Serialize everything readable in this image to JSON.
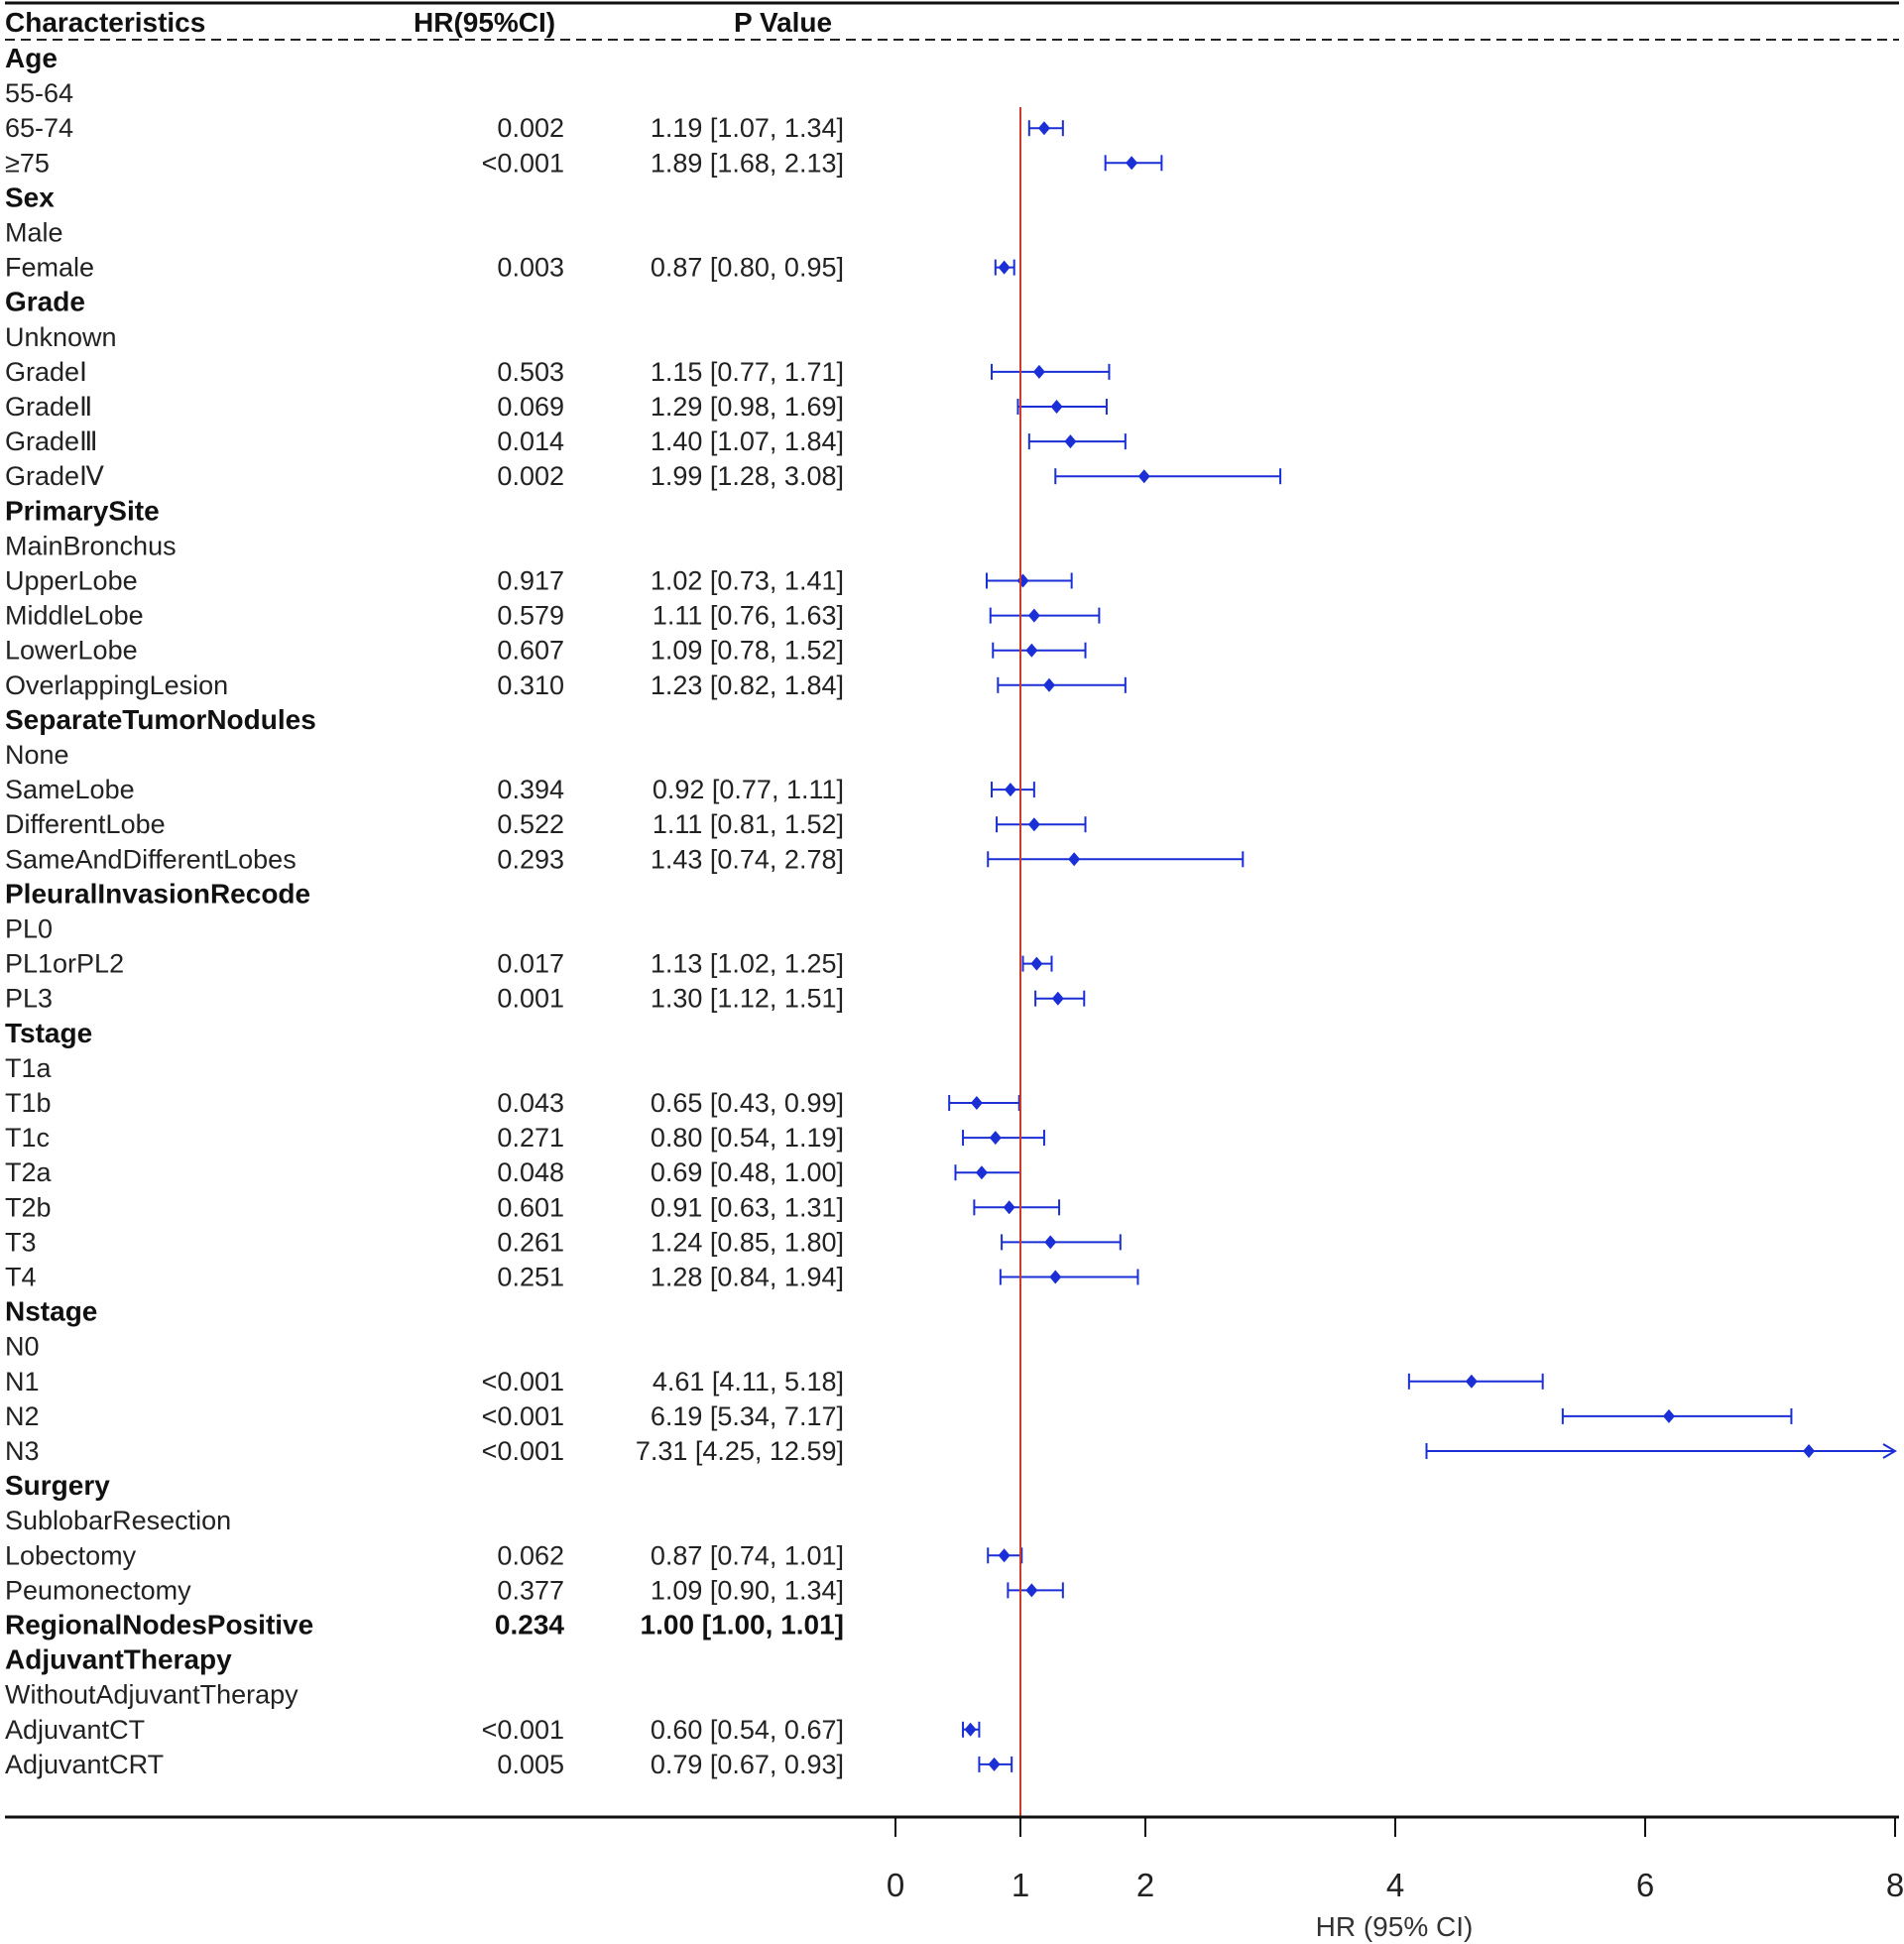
{
  "chart_data": {
    "type": "forest",
    "columns": [
      "Characteristics",
      "HR(95%CI)",
      "P Value"
    ],
    "x_axis": {
      "label": "HR (95% CI)",
      "ticks": [
        0,
        1,
        2,
        4,
        6,
        8
      ],
      "range": [
        0,
        8
      ],
      "reference_line": 1
    },
    "colors": {
      "point": "#1a2fd6",
      "reference": "#d03a2a",
      "text": "#222222"
    },
    "rows": [
      {
        "label": "Age",
        "kind": "group"
      },
      {
        "label": "55-64",
        "kind": "ref"
      },
      {
        "label": "65-74",
        "kind": "item",
        "p": "0.002",
        "ci_text": "1.19 [1.07, 1.34]",
        "hr": 1.19,
        "lo": 1.07,
        "hi": 1.34
      },
      {
        "label": "≥75",
        "kind": "item",
        "p": "<0.001",
        "ci_text": "1.89 [1.68, 2.13]",
        "hr": 1.89,
        "lo": 1.68,
        "hi": 2.13
      },
      {
        "label": "Sex",
        "kind": "group"
      },
      {
        "label": "Male",
        "kind": "ref"
      },
      {
        "label": "Female",
        "kind": "item",
        "p": "0.003",
        "ci_text": "0.87 [0.80, 0.95]",
        "hr": 0.87,
        "lo": 0.8,
        "hi": 0.95
      },
      {
        "label": "Grade",
        "kind": "group"
      },
      {
        "label": "Unknown",
        "kind": "ref"
      },
      {
        "label": "GradeⅠ",
        "kind": "item",
        "p": "0.503",
        "ci_text": "1.15 [0.77, 1.71]",
        "hr": 1.15,
        "lo": 0.77,
        "hi": 1.71
      },
      {
        "label": "GradeⅡ",
        "kind": "item",
        "p": "0.069",
        "ci_text": "1.29 [0.98, 1.69]",
        "hr": 1.29,
        "lo": 0.98,
        "hi": 1.69
      },
      {
        "label": "GradeⅢ",
        "kind": "item",
        "p": "0.014",
        "ci_text": "1.40 [1.07, 1.84]",
        "hr": 1.4,
        "lo": 1.07,
        "hi": 1.84
      },
      {
        "label": "GradeⅣ",
        "kind": "item",
        "p": "0.002",
        "ci_text": "1.99 [1.28, 3.08]",
        "hr": 1.99,
        "lo": 1.28,
        "hi": 3.08
      },
      {
        "label": "PrimarySite",
        "kind": "group"
      },
      {
        "label": "MainBronchus",
        "kind": "ref"
      },
      {
        "label": "UpperLobe",
        "kind": "item",
        "p": "0.917",
        "ci_text": "1.02 [0.73, 1.41]",
        "hr": 1.02,
        "lo": 0.73,
        "hi": 1.41
      },
      {
        "label": "MiddleLobe",
        "kind": "item",
        "p": "0.579",
        "ci_text": "1.11 [0.76, 1.63]",
        "hr": 1.11,
        "lo": 0.76,
        "hi": 1.63
      },
      {
        "label": "LowerLobe",
        "kind": "item",
        "p": "0.607",
        "ci_text": "1.09 [0.78, 1.52]",
        "hr": 1.09,
        "lo": 0.78,
        "hi": 1.52
      },
      {
        "label": "OverlappingLesion",
        "kind": "item",
        "p": "0.310",
        "ci_text": "1.23 [0.82, 1.84]",
        "hr": 1.23,
        "lo": 0.82,
        "hi": 1.84
      },
      {
        "label": "SeparateTumorNodules",
        "kind": "group"
      },
      {
        "label": "None",
        "kind": "ref"
      },
      {
        "label": "SameLobe",
        "kind": "item",
        "p": "0.394",
        "ci_text": "0.92 [0.77, 1.11]",
        "hr": 0.92,
        "lo": 0.77,
        "hi": 1.11
      },
      {
        "label": "DifferentLobe",
        "kind": "item",
        "p": "0.522",
        "ci_text": "1.11 [0.81, 1.52]",
        "hr": 1.11,
        "lo": 0.81,
        "hi": 1.52
      },
      {
        "label": "SameAndDifferentLobes",
        "kind": "item",
        "p": "0.293",
        "ci_text": "1.43 [0.74, 2.78]",
        "hr": 1.43,
        "lo": 0.74,
        "hi": 2.78
      },
      {
        "label": "PleuralInvasionRecode",
        "kind": "group"
      },
      {
        "label": "PL0",
        "kind": "ref"
      },
      {
        "label": "PL1orPL2",
        "kind": "item",
        "p": "0.017",
        "ci_text": "1.13 [1.02, 1.25]",
        "hr": 1.13,
        "lo": 1.02,
        "hi": 1.25
      },
      {
        "label": "PL3",
        "kind": "item",
        "p": "0.001",
        "ci_text": "1.30 [1.12, 1.51]",
        "hr": 1.3,
        "lo": 1.12,
        "hi": 1.51
      },
      {
        "label": "Tstage",
        "kind": "group"
      },
      {
        "label": "T1a",
        "kind": "ref"
      },
      {
        "label": "T1b",
        "kind": "item",
        "p": "0.043",
        "ci_text": "0.65 [0.43, 0.99]",
        "hr": 0.65,
        "lo": 0.43,
        "hi": 0.99
      },
      {
        "label": "T1c",
        "kind": "item",
        "p": "0.271",
        "ci_text": "0.80 [0.54, 1.19]",
        "hr": 0.8,
        "lo": 0.54,
        "hi": 1.19
      },
      {
        "label": "T2a",
        "kind": "item",
        "p": "0.048",
        "ci_text": "0.69 [0.48, 1.00]",
        "hr": 0.69,
        "lo": 0.48,
        "hi": 1.0
      },
      {
        "label": "T2b",
        "kind": "item",
        "p": "0.601",
        "ci_text": "0.91 [0.63, 1.31]",
        "hr": 0.91,
        "lo": 0.63,
        "hi": 1.31
      },
      {
        "label": "T3",
        "kind": "item",
        "p": "0.261",
        "ci_text": "1.24 [0.85, 1.80]",
        "hr": 1.24,
        "lo": 0.85,
        "hi": 1.8
      },
      {
        "label": "T4",
        "kind": "item",
        "p": "0.251",
        "ci_text": "1.28 [0.84, 1.94]",
        "hr": 1.28,
        "lo": 0.84,
        "hi": 1.94
      },
      {
        "label": "Nstage",
        "kind": "group"
      },
      {
        "label": "N0",
        "kind": "ref"
      },
      {
        "label": "N1",
        "kind": "item",
        "p": "<0.001",
        "ci_text": "4.61 [4.11, 5.18]",
        "hr": 4.61,
        "lo": 4.11,
        "hi": 5.18
      },
      {
        "label": "N2",
        "kind": "item",
        "p": "<0.001",
        "ci_text": "6.19 [5.34, 7.17]",
        "hr": 6.19,
        "lo": 5.34,
        "hi": 7.17
      },
      {
        "label": "N3",
        "kind": "item",
        "p": "<0.001",
        "ci_text": "7.31 [4.25, 12.59]",
        "hr": 7.31,
        "lo": 4.25,
        "hi": 12.59
      },
      {
        "label": "Surgery",
        "kind": "group"
      },
      {
        "label": "SublobarResection",
        "kind": "ref"
      },
      {
        "label": "Lobectomy",
        "kind": "item",
        "p": "0.062",
        "ci_text": "0.87 [0.74, 1.01]",
        "hr": 0.87,
        "lo": 0.74,
        "hi": 1.01
      },
      {
        "label": "Peumonectomy",
        "kind": "item",
        "p": "0.377",
        "ci_text": "1.09 [0.90, 1.34]",
        "hr": 1.09,
        "lo": 0.9,
        "hi": 1.34
      },
      {
        "label": "RegionalNodesPositive",
        "kind": "bolditem",
        "p": "0.234",
        "ci_text": "1.00 [1.00, 1.01]",
        "hr": 1.0,
        "lo": 1.0,
        "hi": 1.01
      },
      {
        "label": "AdjuvantTherapy",
        "kind": "group"
      },
      {
        "label": "WithoutAdjuvantTherapy",
        "kind": "ref"
      },
      {
        "label": "AdjuvantCT",
        "kind": "item",
        "p": "<0.001",
        "ci_text": "0.60 [0.54, 0.67]",
        "hr": 0.6,
        "lo": 0.54,
        "hi": 0.67
      },
      {
        "label": "AdjuvantCRT",
        "kind": "item",
        "p": "0.005",
        "ci_text": "0.79 [0.67, 0.93]",
        "hr": 0.79,
        "lo": 0.67,
        "hi": 0.93
      }
    ]
  }
}
